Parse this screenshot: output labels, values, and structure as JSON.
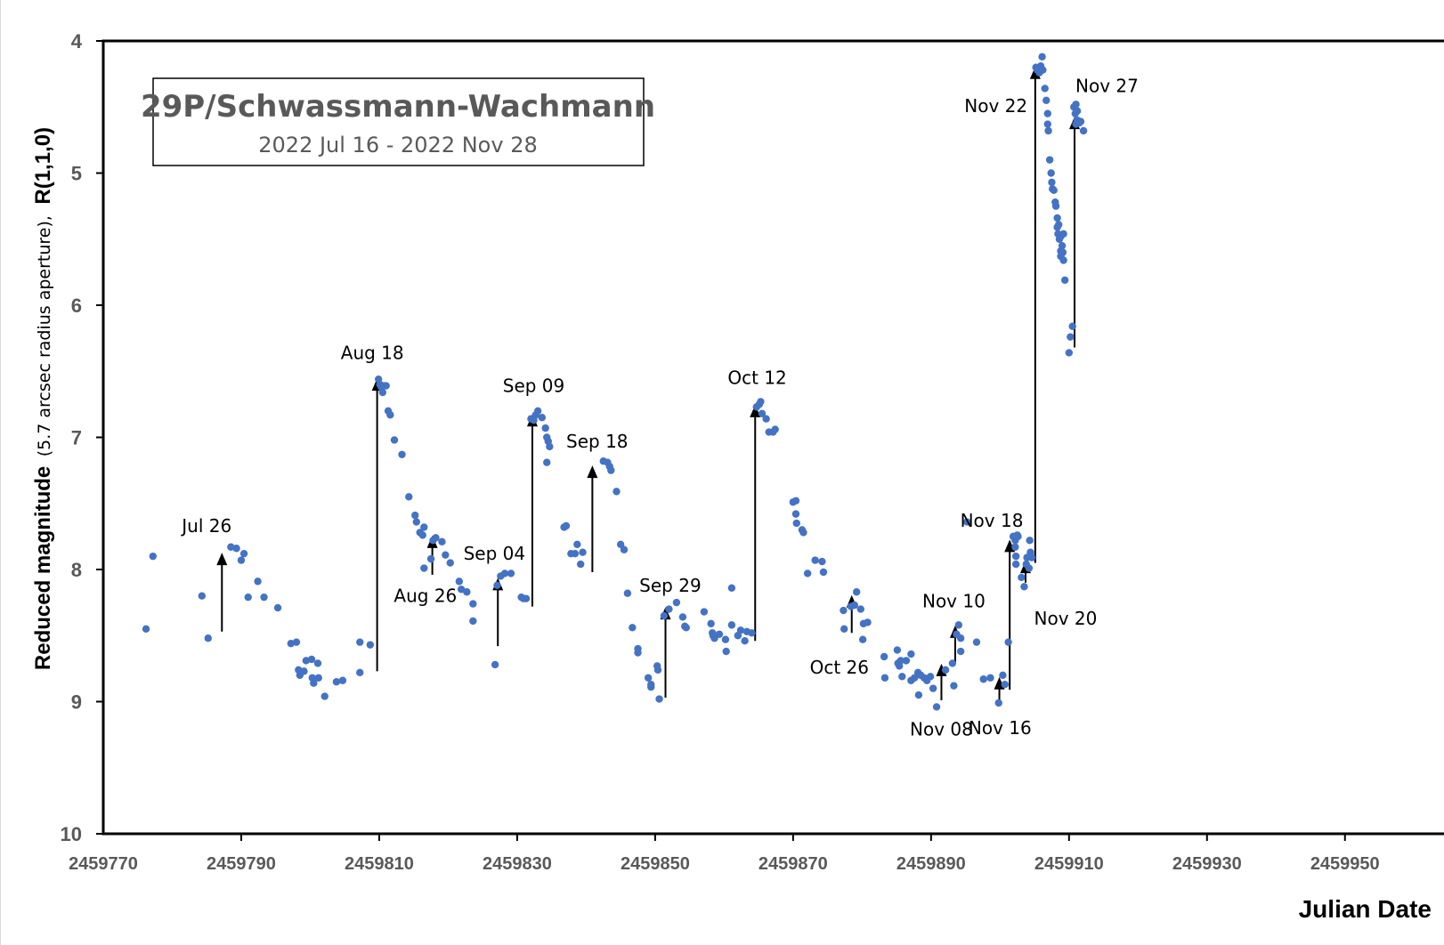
{
  "chart_data": {
    "type": "scatter",
    "title": "29P/Schwassmann-Wachmann",
    "subtitle": "2022 Jul 16 - 2022 Nov 28",
    "xlabel": "Julian Date",
    "ylabel_main": "Reduced magnitude",
    "ylabel_paren": "(5.7 arcsec radius aperture),",
    "ylabel_r": "R(1,1,0)",
    "xlim": [
      2459770,
      2459955
    ],
    "ylim": [
      10,
      4
    ],
    "y_inverted": true,
    "x_ticks": [
      2459770,
      2459790,
      2459810,
      2459830,
      2459850,
      2459870,
      2459890,
      2459910,
      2459930,
      2459950
    ],
    "x_tick_labels": [
      "2459770",
      "2459790",
      "2459810",
      "2459830",
      "2459850",
      "2459870",
      "2459890",
      "2459910",
      "2459930",
      "2459950"
    ],
    "y_ticks": [
      4,
      5,
      6,
      7,
      8,
      9,
      10
    ],
    "y_tick_labels": [
      "4",
      "5",
      "6",
      "7",
      "8",
      "9",
      "10"
    ],
    "marker_color": "#4472C4",
    "series": [
      {
        "points": [
          [
            2459776.2,
            8.45
          ],
          [
            2459777.2,
            7.9
          ],
          [
            2459784.3,
            8.2
          ],
          [
            2459785.2,
            8.52
          ],
          [
            2459788.5,
            7.83
          ],
          [
            2459789.3,
            7.84
          ],
          [
            2459790.0,
            7.93
          ],
          [
            2459790.4,
            7.88
          ],
          [
            2459791.0,
            8.21
          ],
          [
            2459792.4,
            8.09
          ],
          [
            2459793.3,
            8.21
          ],
          [
            2459795.3,
            8.29
          ],
          [
            2459797.2,
            8.56
          ],
          [
            2459798.0,
            8.55
          ],
          [
            2459798.3,
            8.76
          ],
          [
            2459798.5,
            8.8
          ],
          [
            2459799.1,
            8.77
          ],
          [
            2459799.4,
            8.69
          ],
          [
            2459800.2,
            8.68
          ],
          [
            2459800.3,
            8.82
          ],
          [
            2459800.5,
            8.86
          ],
          [
            2459801.1,
            8.71
          ],
          [
            2459801.2,
            8.82
          ],
          [
            2459802.1,
            8.96
          ],
          [
            2459803.8,
            8.85
          ],
          [
            2459804.7,
            8.84
          ],
          [
            2459807.2,
            8.78
          ],
          [
            2459807.2,
            8.55
          ],
          [
            2459808.7,
            8.57
          ],
          [
            2459809.9,
            6.56
          ],
          [
            2459810.1,
            6.6
          ],
          [
            2459810.3,
            6.62
          ],
          [
            2459810.5,
            6.66
          ],
          [
            2459810.7,
            6.61
          ],
          [
            2459811.0,
            6.61
          ],
          [
            2459811.3,
            6.8
          ],
          [
            2459811.6,
            6.83
          ],
          [
            2459812.2,
            7.02
          ],
          [
            2459813.3,
            7.13
          ],
          [
            2459814.3,
            7.45
          ],
          [
            2459815.2,
            7.59
          ],
          [
            2459815.4,
            7.64
          ],
          [
            2459815.9,
            7.72
          ],
          [
            2459816.5,
            7.68
          ],
          [
            2459816.3,
            7.74
          ],
          [
            2459816.5,
            7.99
          ],
          [
            2459817.5,
            7.92
          ],
          [
            2459817.8,
            7.78
          ],
          [
            2459818.2,
            7.76
          ],
          [
            2459819.1,
            7.79
          ],
          [
            2459819.6,
            7.89
          ],
          [
            2459820.3,
            7.95
          ],
          [
            2459821.6,
            8.09
          ],
          [
            2459821.9,
            8.15
          ],
          [
            2459822.7,
            8.17
          ],
          [
            2459823.6,
            8.26
          ],
          [
            2459823.6,
            8.39
          ],
          [
            2459826.8,
            8.72
          ],
          [
            2459827.1,
            8.12
          ],
          [
            2459827.6,
            8.05
          ],
          [
            2459828.2,
            8.03
          ],
          [
            2459829.1,
            8.03
          ],
          [
            2459830.6,
            8.21
          ],
          [
            2459830.9,
            8.22
          ],
          [
            2459831.3,
            8.22
          ],
          [
            2459832.0,
            6.86
          ],
          [
            2459832.4,
            6.87
          ],
          [
            2459832.7,
            6.83
          ],
          [
            2459833.0,
            6.8
          ],
          [
            2459833.6,
            6.85
          ],
          [
            2459834.1,
            6.93
          ],
          [
            2459834.3,
            7.0
          ],
          [
            2459834.5,
            7.03
          ],
          [
            2459834.7,
            7.07
          ],
          [
            2459834.3,
            7.19
          ],
          [
            2459836.8,
            7.68
          ],
          [
            2459837.1,
            7.67
          ],
          [
            2459837.8,
            7.88
          ],
          [
            2459838.4,
            7.88
          ],
          [
            2459838.7,
            7.81
          ],
          [
            2459839.2,
            7.96
          ],
          [
            2459839.5,
            7.87
          ],
          [
            2459842.5,
            7.18
          ],
          [
            2459843.1,
            7.19
          ],
          [
            2459843.4,
            7.22
          ],
          [
            2459843.6,
            7.25
          ],
          [
            2459844.4,
            7.41
          ],
          [
            2459845.0,
            7.81
          ],
          [
            2459845.5,
            7.85
          ],
          [
            2459846.0,
            8.18
          ],
          [
            2459846.7,
            8.44
          ],
          [
            2459847.5,
            8.6
          ],
          [
            2459847.5,
            8.63
          ],
          [
            2459849.0,
            8.82
          ],
          [
            2459849.4,
            8.89
          ],
          [
            2459849.4,
            8.87
          ],
          [
            2459850.3,
            8.73
          ],
          [
            2459850.4,
            8.76
          ],
          [
            2459850.6,
            8.98
          ],
          [
            2459851.3,
            8.35
          ],
          [
            2459852.0,
            8.3
          ],
          [
            2459853.1,
            8.25
          ],
          [
            2459854.3,
            8.43
          ],
          [
            2459854.0,
            8.36
          ],
          [
            2459854.5,
            8.44
          ],
          [
            2459857.1,
            8.32
          ],
          [
            2459858.1,
            8.41
          ],
          [
            2459858.3,
            8.48
          ],
          [
            2459858.4,
            8.5
          ],
          [
            2459858.6,
            8.52
          ],
          [
            2459859.3,
            8.49
          ],
          [
            2459860.2,
            8.53
          ],
          [
            2459860.3,
            8.62
          ],
          [
            2459861.1,
            8.42
          ],
          [
            2459861.1,
            8.14
          ],
          [
            2459862.0,
            8.5
          ],
          [
            2459862.4,
            8.46
          ],
          [
            2459863.0,
            8.54
          ],
          [
            2459863.3,
            8.47
          ],
          [
            2459864.0,
            8.48
          ],
          [
            2459864.7,
            6.77
          ],
          [
            2459865.1,
            6.75
          ],
          [
            2459865.3,
            6.73
          ],
          [
            2459865.5,
            6.82
          ],
          [
            2459866.1,
            6.86
          ],
          [
            2459866.5,
            6.96
          ],
          [
            2459867.1,
            6.96
          ],
          [
            2459867.4,
            6.94
          ],
          [
            2459870.0,
            7.49
          ],
          [
            2459870.4,
            7.48
          ],
          [
            2459870.4,
            7.58
          ],
          [
            2459870.5,
            7.65
          ],
          [
            2459871.3,
            7.7
          ],
          [
            2459871.5,
            7.72
          ],
          [
            2459872.1,
            8.03
          ],
          [
            2459873.2,
            7.93
          ],
          [
            2459874.2,
            7.94
          ],
          [
            2459874.4,
            8.02
          ],
          [
            2459877.3,
            8.31
          ],
          [
            2459877.4,
            8.45
          ],
          [
            2459878.4,
            8.28
          ],
          [
            2459878.9,
            8.27
          ],
          [
            2459879.2,
            8.17
          ],
          [
            2459879.8,
            8.3
          ],
          [
            2459880.2,
            8.41
          ],
          [
            2459880.1,
            8.53
          ],
          [
            2459880.8,
            8.4
          ],
          [
            2459883.2,
            8.66
          ],
          [
            2459883.3,
            8.82
          ],
          [
            2459885.1,
            8.61
          ],
          [
            2459885.2,
            8.71
          ],
          [
            2459885.4,
            8.73
          ],
          [
            2459885.6,
            8.69
          ],
          [
            2459885.8,
            8.81
          ],
          [
            2459886.4,
            8.69
          ],
          [
            2459887.1,
            8.64
          ],
          [
            2459887.1,
            8.84
          ],
          [
            2459887.6,
            8.82
          ],
          [
            2459888.1,
            8.78
          ],
          [
            2459888.5,
            8.8
          ],
          [
            2459888.2,
            8.95
          ],
          [
            2459889.0,
            8.82
          ],
          [
            2459889.4,
            8.84
          ],
          [
            2459889.9,
            8.81
          ],
          [
            2459890.3,
            8.9
          ],
          [
            2459890.8,
            9.04
          ],
          [
            2459892.1,
            8.76
          ],
          [
            2459893.1,
            8.71
          ],
          [
            2459893.3,
            8.88
          ],
          [
            2459893.7,
            8.49
          ],
          [
            2459894.0,
            8.42
          ],
          [
            2459894.3,
            8.52
          ],
          [
            2459894.3,
            8.62
          ],
          [
            2459895.2,
            7.64
          ],
          [
            2459896.6,
            8.55
          ],
          [
            2459897.6,
            8.83
          ],
          [
            2459898.6,
            8.82
          ],
          [
            2459899.8,
            9.01
          ],
          [
            2459900.4,
            8.8
          ],
          [
            2459900.7,
            8.87
          ],
          [
            2459901.2,
            8.55
          ],
          [
            2459901.9,
            7.75
          ],
          [
            2459902.2,
            7.83
          ],
          [
            2459902.2,
            7.78
          ],
          [
            2459902.3,
            7.9
          ],
          [
            2459902.6,
            7.75
          ],
          [
            2459902.3,
            7.96
          ],
          [
            2459902.5,
            7.74
          ],
          [
            2459903.1,
            8.06
          ],
          [
            2459903.5,
            8.13
          ],
          [
            2459903.8,
            7.96
          ],
          [
            2459903.9,
            7.91
          ],
          [
            2459904.2,
            7.99
          ],
          [
            2459904.3,
            7.78
          ],
          [
            2459904.4,
            7.87
          ],
          [
            2459904.6,
            7.91
          ],
          [
            2459905.2,
            4.2
          ],
          [
            2459905.4,
            4.22
          ],
          [
            2459905.7,
            4.24
          ],
          [
            2459905.9,
            4.19
          ],
          [
            2459906.0,
            4.22
          ],
          [
            2459906.2,
            4.22
          ],
          [
            2459906.1,
            4.12
          ],
          [
            2459906.5,
            4.36
          ],
          [
            2459906.7,
            4.45
          ],
          [
            2459906.9,
            4.55
          ],
          [
            2459906.9,
            4.63
          ],
          [
            2459907.0,
            4.68
          ],
          [
            2459907.2,
            4.9
          ],
          [
            2459907.4,
            5.0
          ],
          [
            2459907.5,
            5.07
          ],
          [
            2459907.6,
            5.12
          ],
          [
            2459907.8,
            5.13
          ],
          [
            2459908.0,
            5.22
          ],
          [
            2459908.1,
            5.25
          ],
          [
            2459908.3,
            5.34
          ],
          [
            2459908.3,
            5.41
          ],
          [
            2459908.5,
            5.39
          ],
          [
            2459908.4,
            5.46
          ],
          [
            2459908.8,
            5.48
          ],
          [
            2459908.6,
            5.5
          ],
          [
            2459909.0,
            5.55
          ],
          [
            2459909.2,
            5.46
          ],
          [
            2459908.8,
            5.59
          ],
          [
            2459909.1,
            5.6
          ],
          [
            2459908.8,
            5.63
          ],
          [
            2459909.2,
            5.66
          ],
          [
            2459909.4,
            5.81
          ],
          [
            2459910.0,
            6.36
          ],
          [
            2459910.2,
            6.24
          ],
          [
            2459910.5,
            6.16
          ],
          [
            2459910.7,
            4.5
          ],
          [
            2459911.0,
            4.48
          ],
          [
            2459911.2,
            4.53
          ],
          [
            2459910.9,
            4.55
          ],
          [
            2459911.2,
            4.6
          ],
          [
            2459911.5,
            4.62
          ],
          [
            2459911.7,
            4.61
          ],
          [
            2459912.1,
            4.68
          ],
          [
            2459911.0,
            4.63
          ]
        ]
      }
    ],
    "arrows": [
      {
        "label": "Jul 26",
        "x": 2459787.2,
        "y_from": 8.47,
        "y_to": 7.88,
        "label_x": 2459785.0,
        "label_y": 7.67,
        "anchor": "middle"
      },
      {
        "label": "Aug 18",
        "x": 2459809.7,
        "y_from": 8.77,
        "y_to": 6.56,
        "label_x": 2459809.0,
        "label_y": 6.36,
        "anchor": "middle"
      },
      {
        "label": "Aug 26",
        "x": 2459817.7,
        "y_from": 8.04,
        "y_to": 7.75,
        "label_x": 2459816.7,
        "label_y": 8.2,
        "anchor": "middle"
      },
      {
        "label": "Sep 04",
        "x": 2459827.2,
        "y_from": 8.58,
        "y_to": 8.07,
        "label_x": 2459826.7,
        "label_y": 7.88,
        "anchor": "middle"
      },
      {
        "label": "Sep 09",
        "x": 2459832.2,
        "y_from": 8.28,
        "y_to": 6.83,
        "label_x": 2459832.4,
        "label_y": 6.61,
        "anchor": "middle"
      },
      {
        "label": "Sep 18",
        "x": 2459840.9,
        "y_from": 8.02,
        "y_to": 7.22,
        "label_x": 2459841.6,
        "label_y": 7.03,
        "anchor": "middle"
      },
      {
        "label": "Sep 29",
        "x": 2459851.5,
        "y_from": 8.97,
        "y_to": 8.29,
        "label_x": 2459852.2,
        "label_y": 8.12,
        "anchor": "middle"
      },
      {
        "label": "Oct 12",
        "x": 2459864.5,
        "y_from": 8.54,
        "y_to": 6.76,
        "label_x": 2459864.8,
        "label_y": 6.55,
        "anchor": "middle"
      },
      {
        "label": "Oct 26",
        "x": 2459878.5,
        "y_from": 8.48,
        "y_to": 8.2,
        "label_x": 2459876.7,
        "label_y": 8.74,
        "anchor": "middle"
      },
      {
        "label": "Nov 08",
        "x": 2459891.5,
        "y_from": 8.99,
        "y_to": 8.72,
        "label_x": 2459891.5,
        "label_y": 9.21,
        "anchor": "middle"
      },
      {
        "label": "Nov 10",
        "x": 2459893.5,
        "y_from": 8.7,
        "y_to": 8.43,
        "label_x": 2459893.3,
        "label_y": 8.24,
        "anchor": "middle"
      },
      {
        "label": "Nov 16",
        "x": 2459899.9,
        "y_from": 9.01,
        "y_to": 8.82,
        "label_x": 2459900.0,
        "label_y": 9.2,
        "anchor": "middle"
      },
      {
        "label": "Nov 18",
        "x": 2459901.4,
        "y_from": 8.91,
        "y_to": 7.78,
        "label_x": 2459898.8,
        "label_y": 7.63,
        "anchor": "middle"
      },
      {
        "label": "Nov 20",
        "x": 2459903.7,
        "y_from": 8.1,
        "y_to": 7.94,
        "label_x": 2459909.5,
        "label_y": 8.37,
        "anchor": "middle"
      },
      {
        "label": "Nov 22",
        "x": 2459905.1,
        "y_from": 7.95,
        "y_to": 4.2,
        "label_x": 2459899.4,
        "label_y": 4.49,
        "anchor": "middle"
      },
      {
        "label": "Nov 27",
        "x": 2459910.8,
        "y_from": 6.32,
        "y_to": 4.58,
        "label_x": 2459915.5,
        "label_y": 4.34,
        "anchor": "middle"
      }
    ]
  }
}
